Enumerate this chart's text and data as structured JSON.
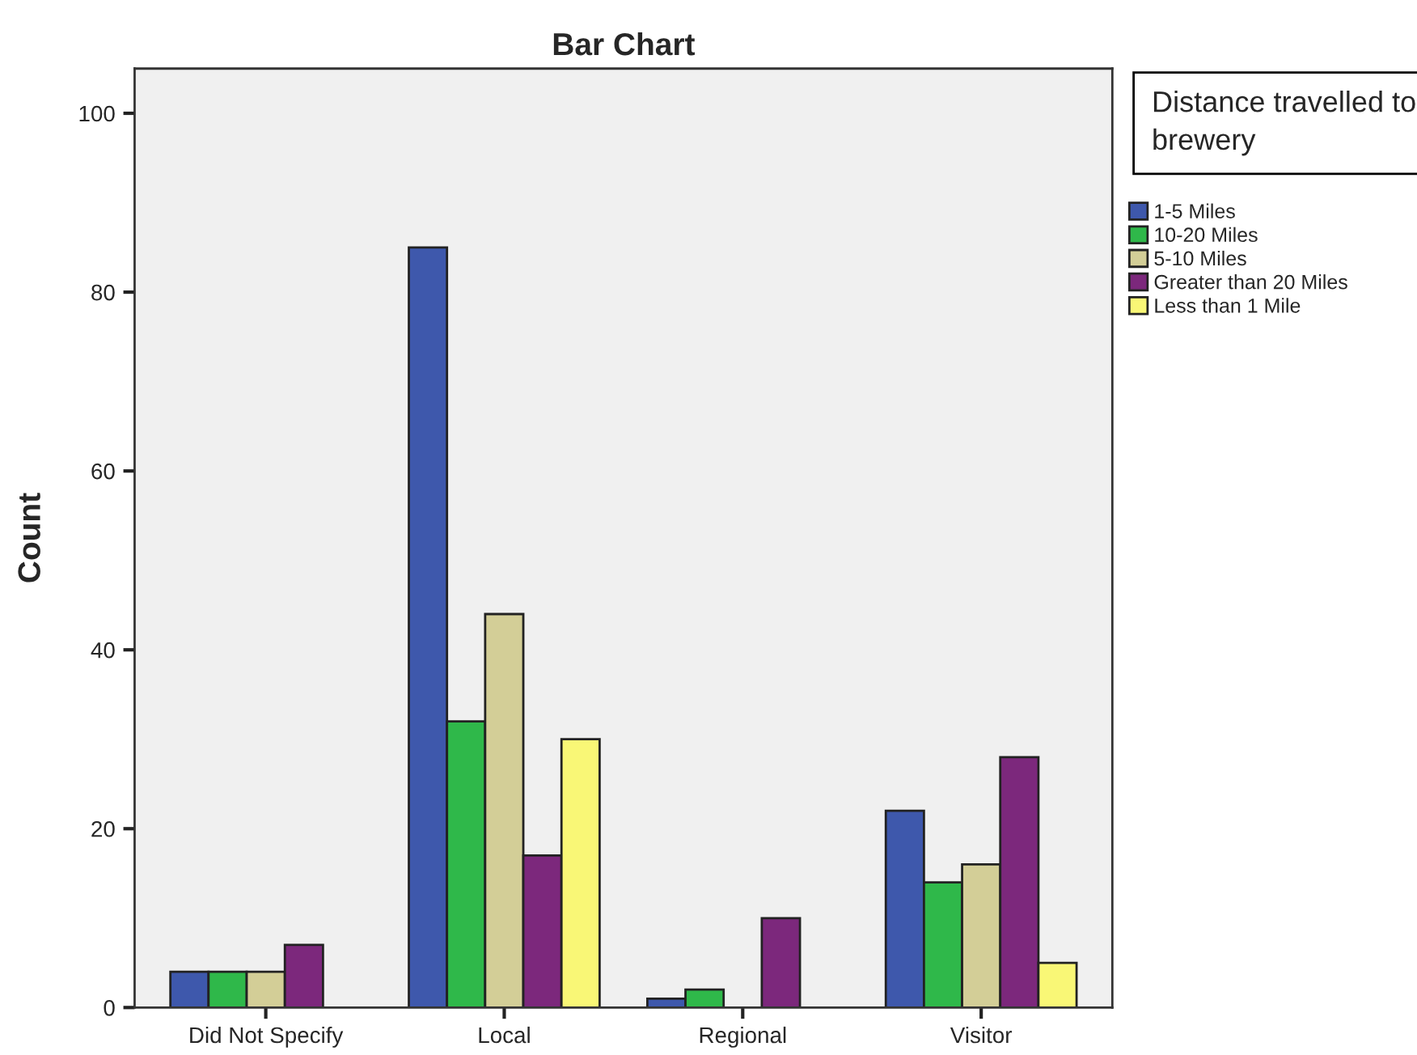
{
  "chart_data": {
    "type": "bar",
    "title": "Bar Chart",
    "ylabel": "Count",
    "legend_title": "Distance travelled to brewery",
    "categories": [
      "Did Not Specify",
      "Local",
      "Regional",
      "Visitor"
    ],
    "series": [
      {
        "name": "1-5 Miles",
        "color": "#3e58ac",
        "values": [
          4,
          85,
          1,
          22
        ]
      },
      {
        "name": "10-20 Miles",
        "color": "#2fb84a",
        "values": [
          4,
          32,
          2,
          14
        ]
      },
      {
        "name": "5-10 Miles",
        "color": "#d3ce97",
        "values": [
          4,
          44,
          null,
          16
        ]
      },
      {
        "name": "Greater than 20 Miles",
        "color": "#7c287c",
        "values": [
          7,
          17,
          10,
          28
        ]
      },
      {
        "name": "Less than 1 Mile",
        "color": "#f9f776",
        "values": [
          null,
          30,
          null,
          5
        ]
      }
    ],
    "ylim": [
      0,
      105
    ],
    "yticks": [
      0,
      20,
      40,
      60,
      80,
      100
    ],
    "grid": false,
    "legend": "right"
  }
}
